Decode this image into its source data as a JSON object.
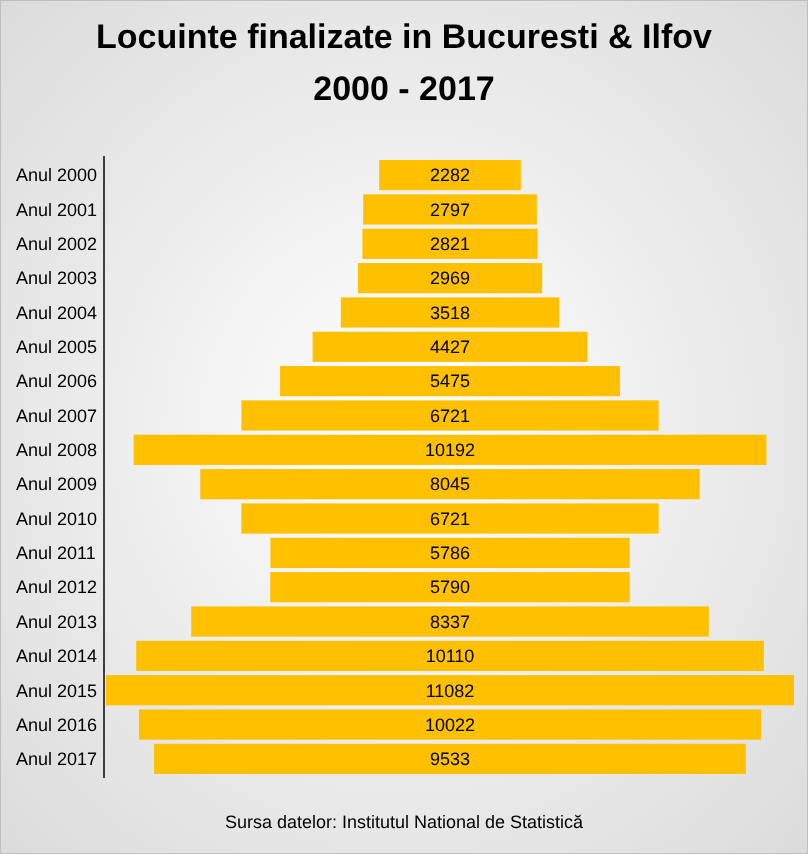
{
  "chart_data": {
    "type": "other",
    "title": "Locuinte finalizate in Bucuresti & Ilfov",
    "subtitle": "2000 - 2017",
    "categories": [
      "Anul 2000",
      "Anul 2001",
      "Anul 2002",
      "Anul 2003",
      "Anul 2004",
      "Anul 2005",
      "Anul 2006",
      "Anul 2007",
      "Anul 2008",
      "Anul 2009",
      "Anul 2010",
      "Anul 2011",
      "Anul 2012",
      "Anul 2013",
      "Anul 2014",
      "Anul 2015",
      "Anul 2016",
      "Anul 2017"
    ],
    "values": [
      2282,
      2797,
      2821,
      2969,
      3518,
      4427,
      5475,
      6721,
      10192,
      8045,
      6721,
      5786,
      5790,
      8337,
      10110,
      11082,
      10022,
      9533
    ],
    "color": "#ffc000",
    "data_labels": true,
    "annotations": [
      "Sursa datelor: Institutul National de Statistică"
    ]
  }
}
